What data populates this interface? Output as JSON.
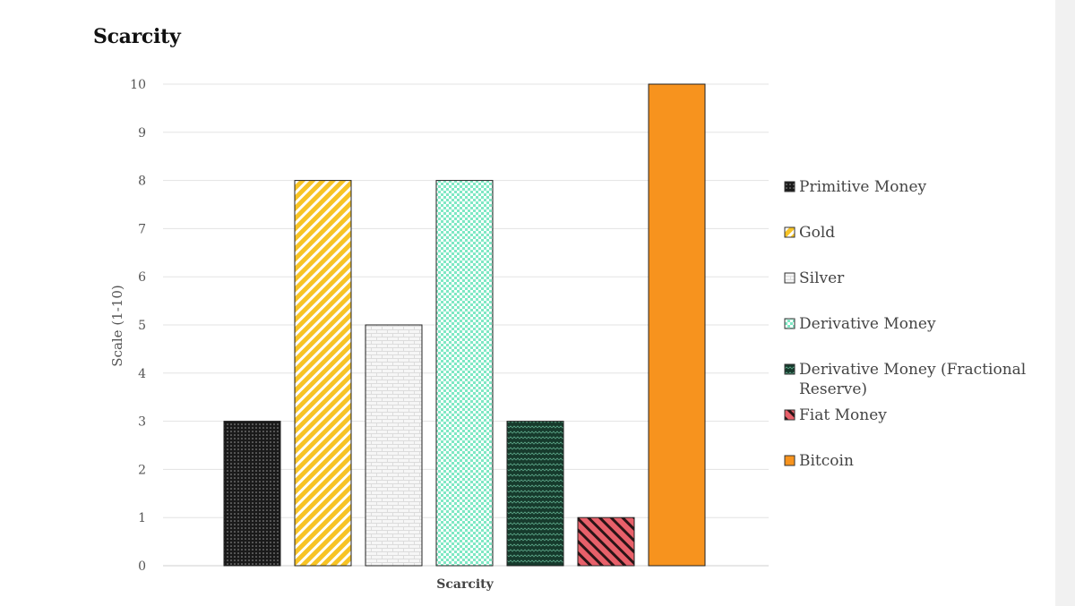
{
  "page": {
    "title": "Scarcity"
  },
  "chart_data": {
    "type": "bar",
    "title": "Scarcity",
    "xlabel": "Scarcity",
    "ylabel": "Scale (1-10)",
    "ylim": [
      0,
      10
    ],
    "yticks": [
      0,
      1,
      2,
      3,
      4,
      5,
      6,
      7,
      8,
      9,
      10
    ],
    "grid": true,
    "legend_position": "right",
    "categories": [
      "Scarcity"
    ],
    "series": [
      {
        "name": "Primitive Money",
        "legend_lines": [
          "Primitive Money"
        ],
        "values": [
          3
        ],
        "color": "#1a1a1a",
        "pattern": "dots"
      },
      {
        "name": "Gold",
        "legend_lines": [
          "Gold"
        ],
        "values": [
          8
        ],
        "color": "#f7c325",
        "pattern": "diagonal-stripes"
      },
      {
        "name": "Silver",
        "legend_lines": [
          "Silver"
        ],
        "values": [
          5
        ],
        "color": "#ededed",
        "pattern": "bricks"
      },
      {
        "name": "Derivative Money",
        "legend_lines": [
          "Derivative Money"
        ],
        "values": [
          8
        ],
        "color": "#7fe8c4",
        "pattern": "checker"
      },
      {
        "name": "Derivative Money (Fractional Reserve)",
        "legend_lines": [
          "Derivative Money (Fractional",
          "Reserve)"
        ],
        "values": [
          3
        ],
        "color": "#1f4a3a",
        "pattern": "zigzag"
      },
      {
        "name": "Fiat Money",
        "legend_lines": [
          "Fiat Money"
        ],
        "values": [
          1
        ],
        "color": "#e8606a",
        "pattern": "wide-diagonal"
      },
      {
        "name": "Bitcoin",
        "legend_lines": [
          "Bitcoin"
        ],
        "values": [
          10
        ],
        "color": "#f7931e",
        "pattern": "solid"
      }
    ]
  }
}
